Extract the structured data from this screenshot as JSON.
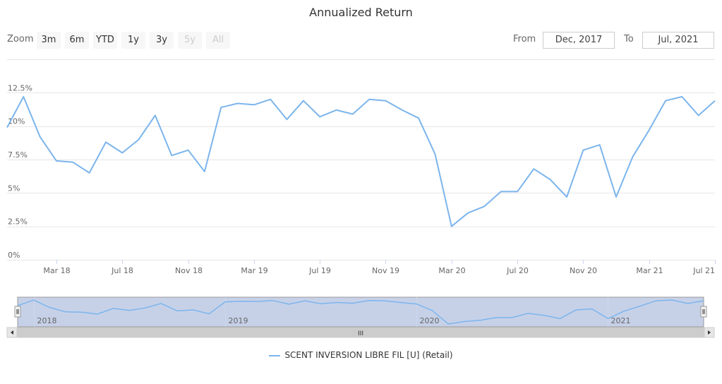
{
  "chart_data": {
    "type": "line",
    "title": "Annualized Return",
    "zoom": {
      "label": "Zoom",
      "buttons": [
        {
          "label": "3m",
          "enabled": true
        },
        {
          "label": "6m",
          "enabled": true
        },
        {
          "label": "YTD",
          "enabled": true
        },
        {
          "label": "1y",
          "enabled": true
        },
        {
          "label": "3y",
          "enabled": true
        },
        {
          "label": "5y",
          "enabled": false
        },
        {
          "label": "All",
          "enabled": false
        }
      ]
    },
    "range": {
      "from_label": "From",
      "from_value": "Dec, 2017",
      "to_label": "To",
      "to_value": "Jul, 2021"
    },
    "y_axis": {
      "min": 0,
      "max": 15,
      "ticks": [
        0,
        2.5,
        5,
        7.5,
        10,
        12.5
      ],
      "tick_labels": [
        "0%",
        "2.5%",
        "5%",
        "7.5%",
        "10%",
        "12.5%"
      ],
      "grid": true
    },
    "x_axis": {
      "min": "2017-12",
      "max": "2021-07",
      "ticks": [
        "2018-03",
        "2018-07",
        "2018-11",
        "2019-03",
        "2019-07",
        "2019-11",
        "2020-03",
        "2020-07",
        "2020-11",
        "2021-03",
        "2021-07"
      ],
      "tick_labels": [
        "Mar 18",
        "Jul 18",
        "Nov 18",
        "Mar 19",
        "Jul 19",
        "Nov 19",
        "Mar 20",
        "Jul 20",
        "Nov 20",
        "Mar 21",
        "Jul 21"
      ]
    },
    "navigator": {
      "year_labels": [
        "2018",
        "2019",
        "2020",
        "2021"
      ],
      "year_ticks": [
        "2018-01",
        "2019-01",
        "2020-01",
        "2021-01"
      ],
      "handle_glyph": "III"
    },
    "series": [
      {
        "name": "SCENT INVERSION LIBRE FIL [U] (Retail)",
        "color": "#7cb5ec",
        "x": [
          "2017-12",
          "2018-01",
          "2018-02",
          "2018-03",
          "2018-04",
          "2018-05",
          "2018-06",
          "2018-07",
          "2018-08",
          "2018-09",
          "2018-10",
          "2018-11",
          "2018-12",
          "2019-01",
          "2019-02",
          "2019-03",
          "2019-04",
          "2019-05",
          "2019-06",
          "2019-07",
          "2019-08",
          "2019-09",
          "2019-10",
          "2019-11",
          "2019-12",
          "2020-01",
          "2020-02",
          "2020-03",
          "2020-04",
          "2020-05",
          "2020-06",
          "2020-07",
          "2020-08",
          "2020-09",
          "2020-10",
          "2020-11",
          "2020-12",
          "2021-01",
          "2021-02",
          "2021-03",
          "2021-04",
          "2021-05",
          "2021-06",
          "2021-07"
        ],
        "values": [
          9.9,
          12.2,
          9.2,
          7.4,
          7.3,
          6.5,
          8.8,
          8.0,
          9.0,
          10.8,
          7.8,
          8.2,
          6.6,
          11.4,
          11.7,
          11.6,
          12.0,
          10.5,
          11.9,
          10.7,
          11.2,
          10.9,
          12.0,
          11.9,
          11.2,
          10.6,
          7.9,
          2.5,
          3.5,
          4.0,
          5.1,
          5.1,
          6.8,
          6.0,
          4.7,
          8.2,
          8.6,
          4.7,
          7.7,
          9.7,
          11.9,
          12.2,
          10.8,
          11.9
        ]
      }
    ]
  }
}
